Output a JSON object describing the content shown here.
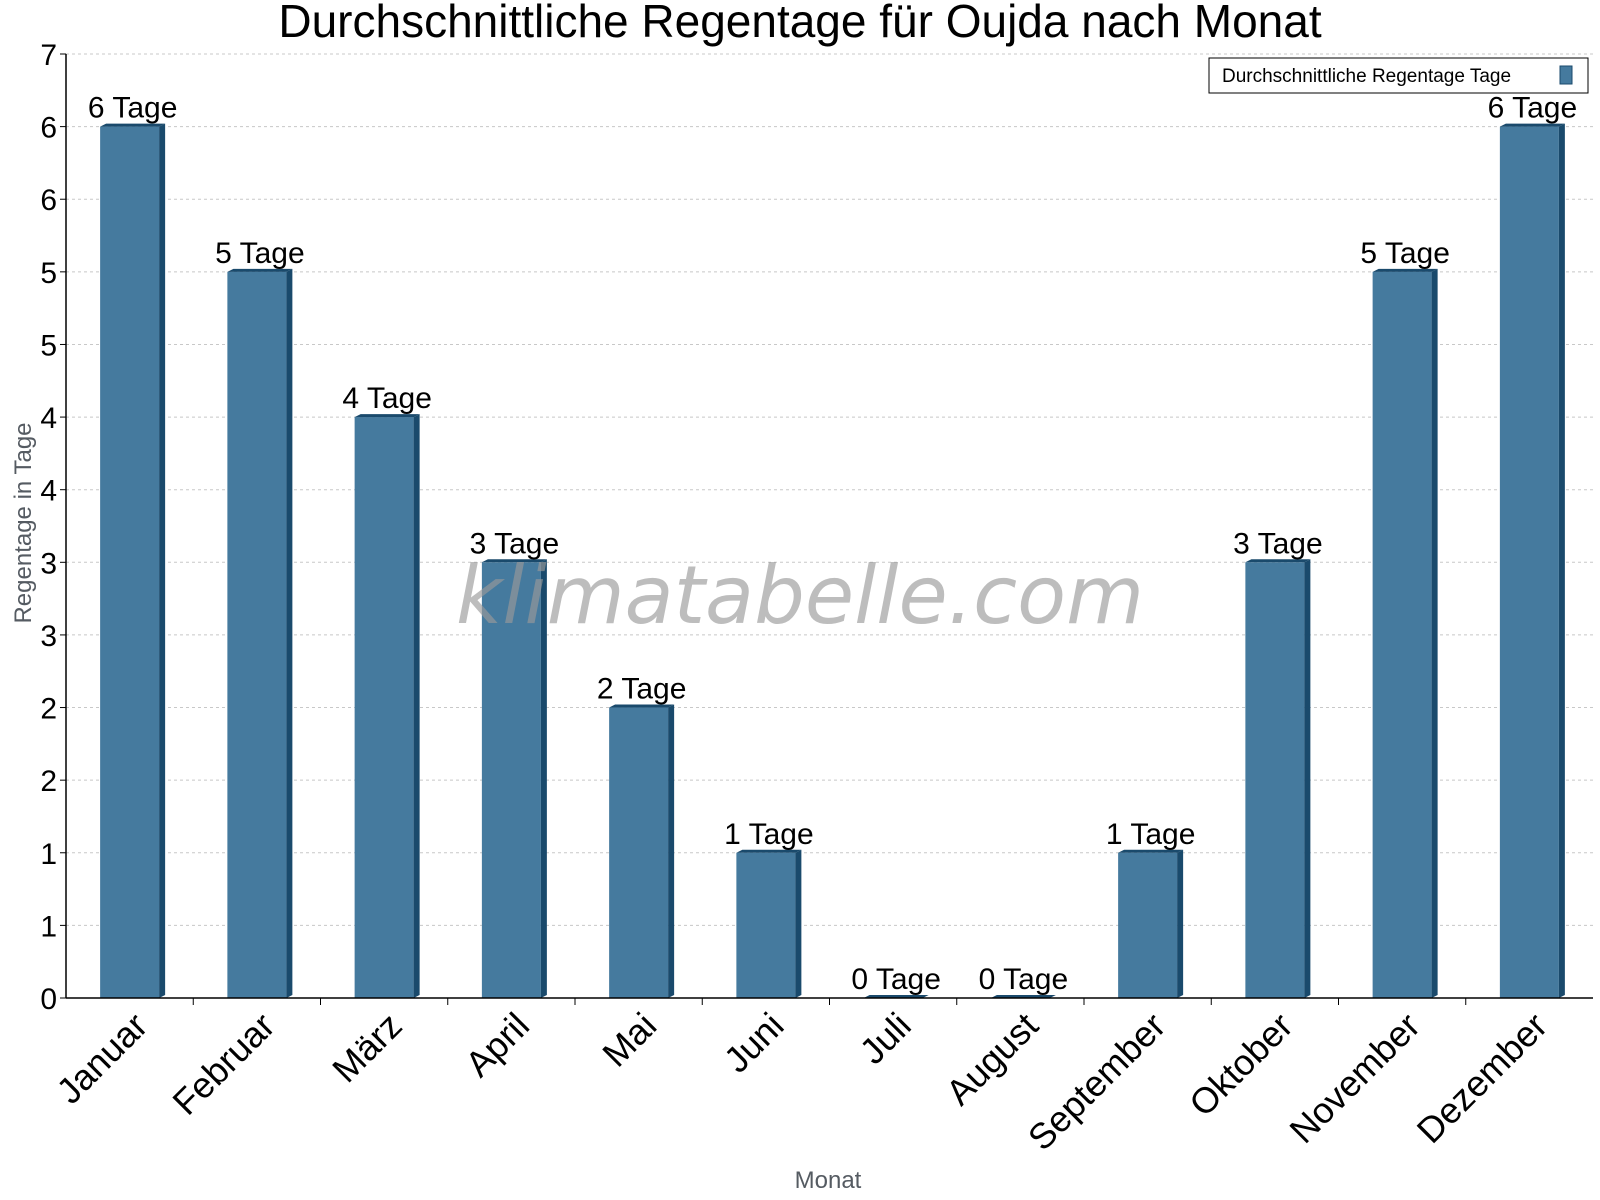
{
  "chart_data": {
    "type": "bar",
    "title": "Durchschnittliche Regentage für Oujda nach Monat",
    "xlabel": "Monat",
    "ylabel": "Regentage in Tage",
    "ylim": [
      0,
      6.5
    ],
    "yticks": [
      {
        "value": 0,
        "label": "0"
      },
      {
        "value": 0.5,
        "label": "1"
      },
      {
        "value": 1,
        "label": "1"
      },
      {
        "value": 1.5,
        "label": "2"
      },
      {
        "value": 2,
        "label": "2"
      },
      {
        "value": 2.5,
        "label": "3"
      },
      {
        "value": 3,
        "label": "3"
      },
      {
        "value": 3.5,
        "label": "4"
      },
      {
        "value": 4,
        "label": "4"
      },
      {
        "value": 4.5,
        "label": "5"
      },
      {
        "value": 5,
        "label": "5"
      },
      {
        "value": 5.5,
        "label": "6"
      },
      {
        "value": 6,
        "label": "6"
      },
      {
        "value": 6.5,
        "label": "7"
      }
    ],
    "grid": true,
    "legend_position": "top-right",
    "categories": [
      "Januar",
      "Februar",
      "März",
      "April",
      "Mai",
      "Juni",
      "Juli",
      "August",
      "September",
      "Oktober",
      "November",
      "Dezember"
    ],
    "series": [
      {
        "name": "Durchschnittliche Regentage Tage",
        "values": [
          6,
          5,
          4,
          3,
          2,
          1,
          0,
          0,
          1,
          3,
          5,
          6
        ],
        "labels": [
          "6 Tage",
          "5 Tage",
          "4 Tage",
          "3 Tage",
          "2 Tage",
          "1 Tage",
          "0 Tage",
          "0 Tage",
          "1 Tage",
          "3 Tage",
          "5 Tage",
          "6 Tage"
        ],
        "color": "#457a9e",
        "side_color": "#1a4a6c"
      }
    ]
  },
  "watermark": "klimatabelle.com"
}
